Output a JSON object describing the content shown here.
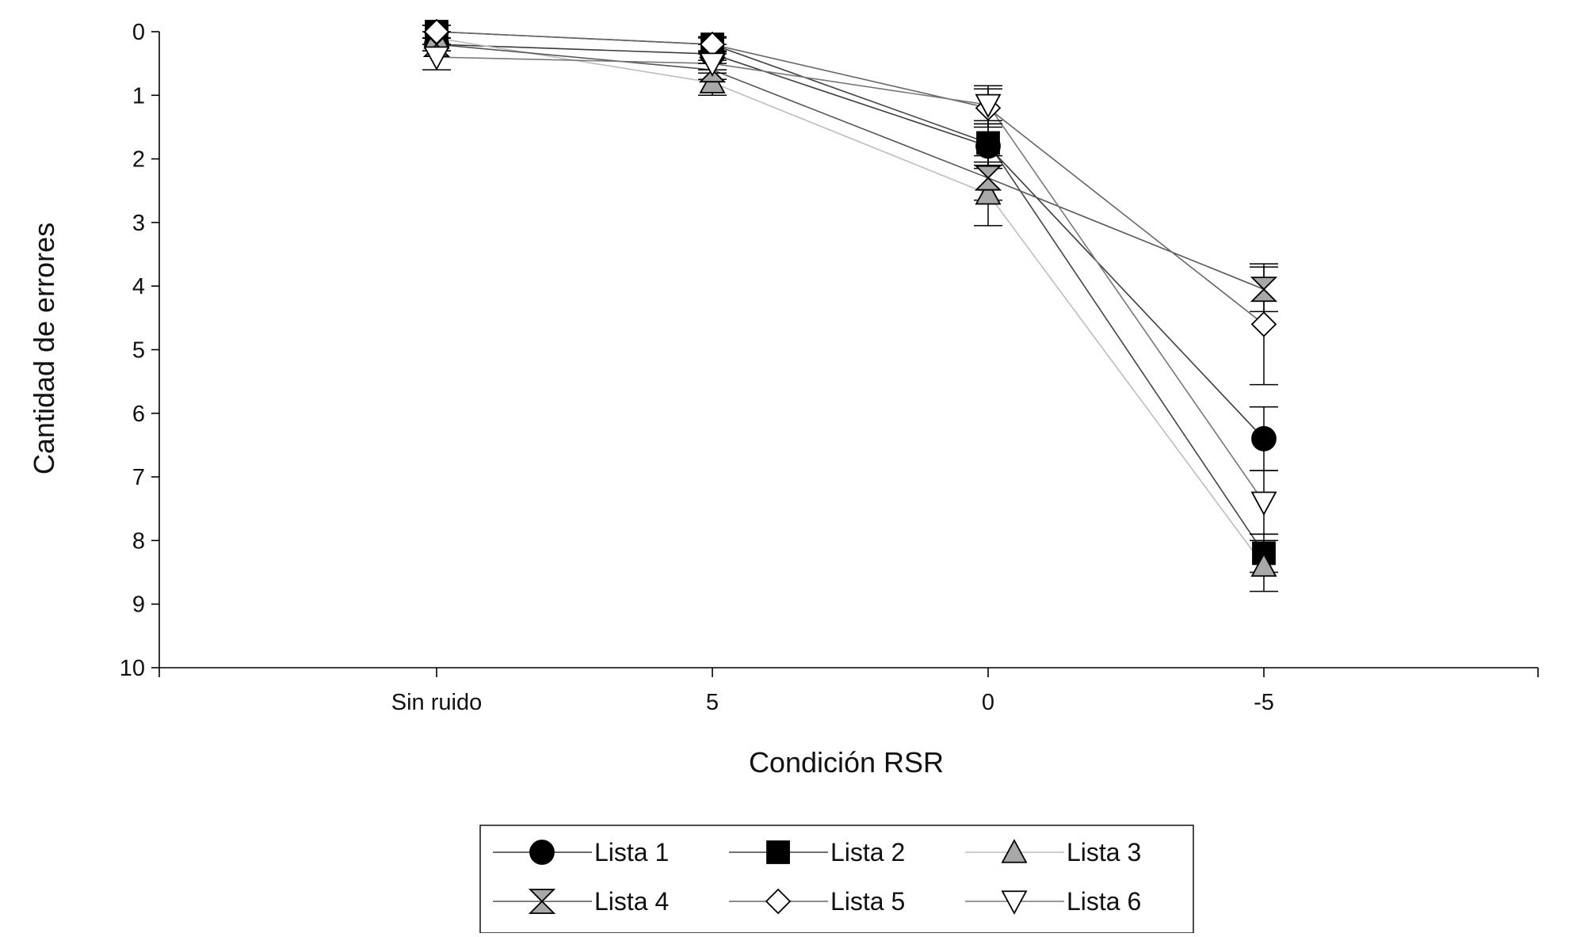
{
  "chart_data": {
    "type": "line",
    "title": "",
    "xlabel": "Condición RSR",
    "ylabel": "Cantidad de errores",
    "categories": [
      "Sin ruido",
      "5",
      "0",
      "-5"
    ],
    "y_ticks": [
      "0",
      "1",
      "2",
      "3",
      "4",
      "5",
      "6",
      "7",
      "8",
      "9",
      "10"
    ],
    "ylim": [
      0,
      10
    ],
    "y_inverted": true,
    "grid": false,
    "legend_position": "bottom-center",
    "series": [
      {
        "name": "Lista 1",
        "marker": "circle",
        "marker_fill": "#000000",
        "line_color": "#3c3c3c",
        "values": [
          0.2,
          0.35,
          1.8,
          6.4
        ],
        "err": [
          0.1,
          0.15,
          0.35,
          0.5
        ]
      },
      {
        "name": "Lista 2",
        "marker": "square",
        "marker_fill": "#000000",
        "line_color": "#444444",
        "values": [
          0.0,
          0.2,
          1.75,
          8.2
        ],
        "err": [
          0.1,
          0.12,
          0.35,
          0.3
        ]
      },
      {
        "name": "Lista 3",
        "marker": "triangle-up",
        "marker_fill": "#a8a8a8",
        "line_color": "#bdbdbd",
        "values": [
          0.1,
          0.8,
          2.55,
          8.4
        ],
        "err": [
          0.1,
          0.2,
          0.5,
          0.4
        ]
      },
      {
        "name": "Lista 4",
        "marker": "bowtie",
        "marker_fill": "#a8a8a8",
        "line_color": "#555555",
        "values": [
          0.2,
          0.6,
          2.3,
          4.05
        ],
        "err": [
          0.1,
          0.15,
          0.35,
          0.35
        ]
      },
      {
        "name": "Lista 5",
        "marker": "diamond",
        "marker_fill": "#ffffff",
        "line_color": "#666666",
        "values": [
          0.0,
          0.2,
          1.2,
          4.6
        ],
        "err": [
          0.1,
          0.1,
          0.3,
          0.95
        ]
      },
      {
        "name": "Lista 6",
        "marker": "triangle-down",
        "marker_fill": "#ffffff",
        "line_color": "#777777",
        "values": [
          0.4,
          0.5,
          1.15,
          7.4
        ],
        "err": [
          0.2,
          0.15,
          0.3,
          0.5
        ]
      }
    ]
  }
}
